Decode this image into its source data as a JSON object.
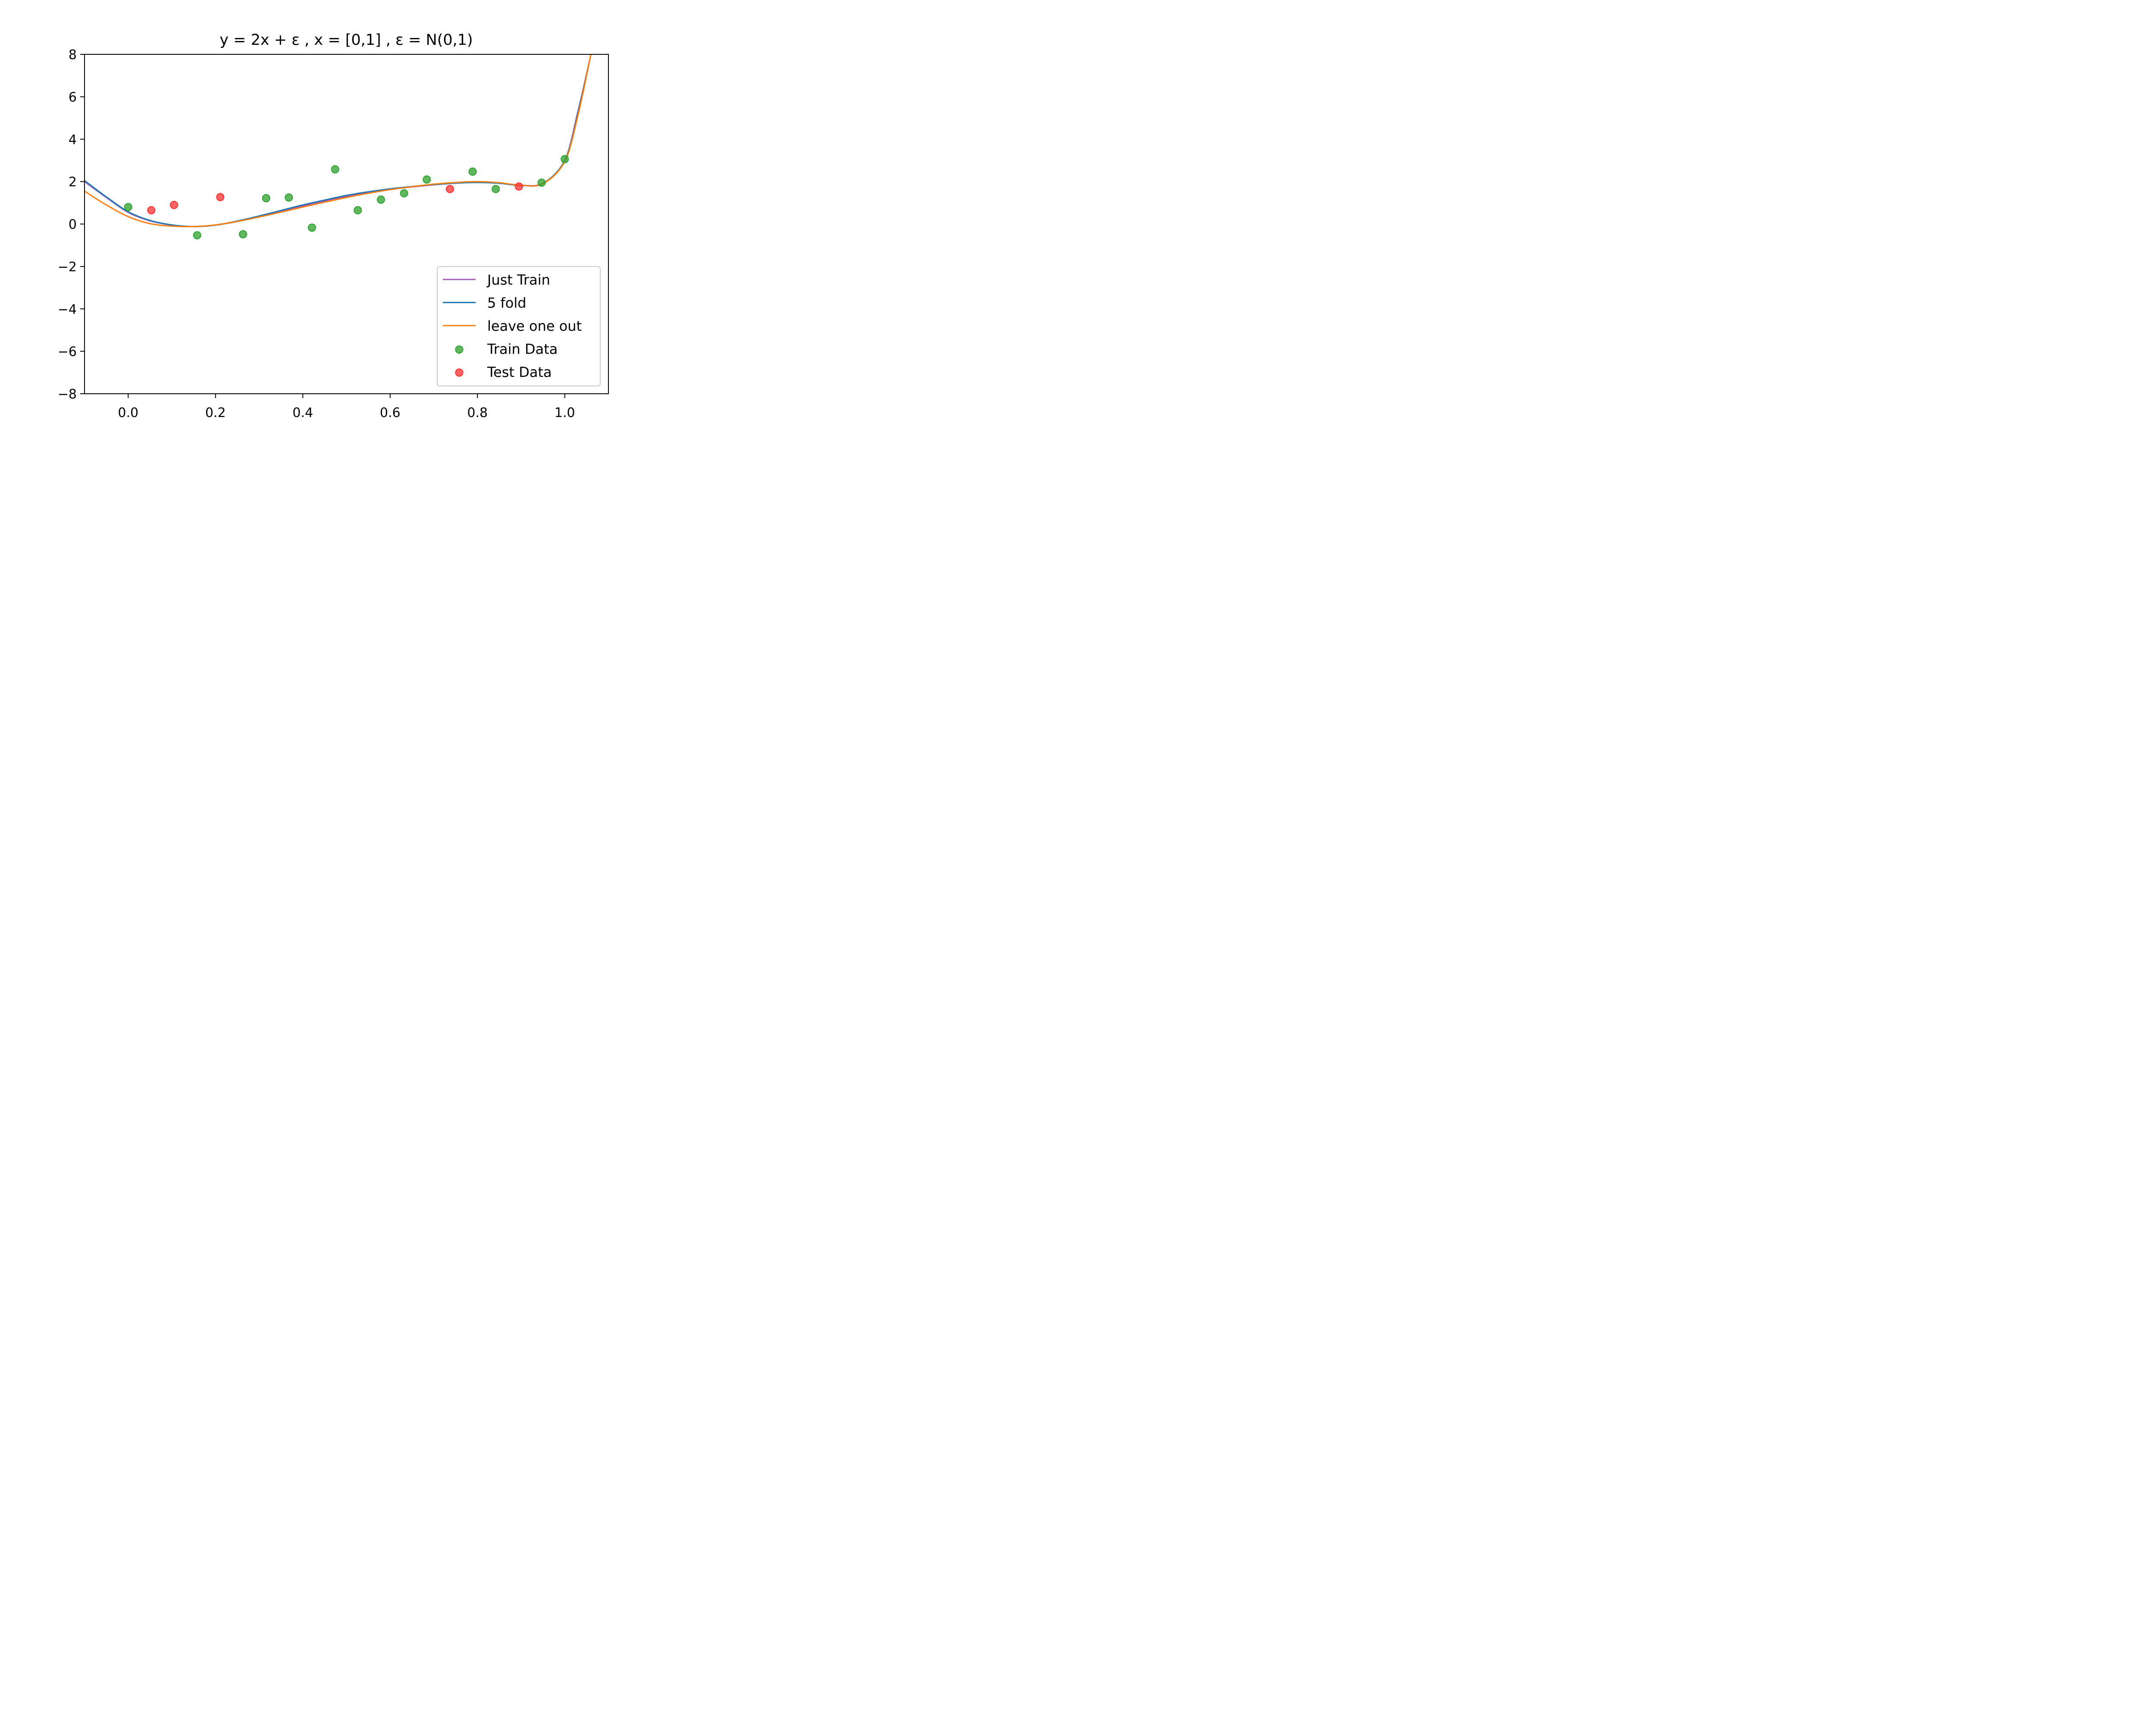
{
  "chart_data": {
    "type": "scatter",
    "title": "y = 2x + ε , x = [0,1] , ε =  N(0,1)",
    "xlabel": "",
    "ylabel": "",
    "xlim": [
      -0.1,
      1.1
    ],
    "ylim": [
      -8,
      8
    ],
    "xticks": [
      0.0,
      0.2,
      0.4,
      0.6,
      0.8,
      1.0
    ],
    "xtick_labels": [
      "0.0",
      "0.2",
      "0.4",
      "0.6",
      "0.8",
      "1.0"
    ],
    "yticks": [
      8,
      6,
      4,
      2,
      0,
      -2,
      -4,
      -6,
      -8
    ],
    "ytick_labels": [
      "8",
      "6",
      "4",
      "2",
      "0",
      "−2",
      "−4",
      "−6",
      "−8"
    ],
    "grid": false,
    "legend_position": "bottom-right",
    "lines": [
      {
        "name": "Just Train",
        "color": "#a55ab4",
        "x": [
          -0.1,
          -0.05,
          0.0,
          0.05,
          0.1,
          0.15,
          0.2,
          0.25,
          0.3,
          0.35,
          0.4,
          0.45,
          0.5,
          0.55,
          0.6,
          0.65,
          0.7,
          0.75,
          0.8,
          0.85,
          0.9,
          0.95,
          1.0,
          1.03,
          1.06
        ],
        "y": [
          2.0,
          1.25,
          0.55,
          0.15,
          -0.05,
          -0.12,
          -0.05,
          0.12,
          0.35,
          0.6,
          0.85,
          1.08,
          1.3,
          1.48,
          1.63,
          1.75,
          1.85,
          1.93,
          1.97,
          1.93,
          1.83,
          1.92,
          3.0,
          5.3,
          8.0
        ]
      },
      {
        "name": "5 fold",
        "color": "#1f77b4",
        "x": [
          -0.1,
          -0.05,
          0.0,
          0.05,
          0.1,
          0.15,
          0.2,
          0.25,
          0.3,
          0.35,
          0.4,
          0.45,
          0.5,
          0.55,
          0.6,
          0.65,
          0.7,
          0.75,
          0.8,
          0.85,
          0.9,
          0.95,
          1.0,
          1.03,
          1.06
        ],
        "y": [
          2.05,
          1.28,
          0.58,
          0.17,
          -0.04,
          -0.12,
          -0.05,
          0.14,
          0.38,
          0.64,
          0.9,
          1.13,
          1.35,
          1.52,
          1.66,
          1.77,
          1.86,
          1.93,
          1.96,
          1.92,
          1.82,
          1.91,
          3.0,
          5.2,
          8.0
        ]
      },
      {
        "name": "leave one out",
        "color": "#ff7f0e",
        "x": [
          -0.1,
          -0.05,
          0.0,
          0.05,
          0.1,
          0.15,
          0.2,
          0.25,
          0.3,
          0.35,
          0.4,
          0.45,
          0.5,
          0.55,
          0.6,
          0.65,
          0.7,
          0.75,
          0.8,
          0.85,
          0.9,
          0.95,
          1.0,
          1.03,
          1.06
        ],
        "y": [
          1.55,
          0.9,
          0.35,
          0.02,
          -0.1,
          -0.12,
          -0.04,
          0.12,
          0.33,
          0.56,
          0.8,
          1.03,
          1.25,
          1.45,
          1.62,
          1.76,
          1.88,
          1.96,
          2.0,
          1.95,
          1.83,
          1.9,
          2.95,
          5.1,
          8.0
        ]
      }
    ],
    "series": [
      {
        "name": "Train Data",
        "color": "#2ca02c",
        "x": [
          0.0,
          0.158,
          0.263,
          0.316,
          0.368,
          0.421,
          0.474,
          0.526,
          0.579,
          0.632,
          0.684,
          0.789,
          0.842,
          0.947,
          1.0
        ],
        "y": [
          0.8,
          -0.53,
          -0.48,
          1.22,
          1.25,
          -0.17,
          2.58,
          0.65,
          1.15,
          1.45,
          2.1,
          2.47,
          1.65,
          1.95,
          3.06
        ]
      },
      {
        "name": "Test Data",
        "color": "#ff3030",
        "x": [
          0.053,
          0.105,
          0.211,
          0.737,
          0.895
        ],
        "y": [
          0.65,
          0.9,
          1.27,
          1.65,
          1.77
        ]
      }
    ]
  }
}
